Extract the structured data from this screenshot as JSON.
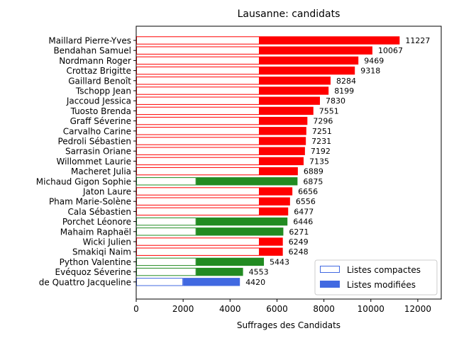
{
  "chart_data": {
    "type": "bar",
    "orientation": "horizontal",
    "stacked": true,
    "title": "Lausanne: candidats",
    "xlabel": "Suffrages des Candidats",
    "ylabel": "",
    "xlim": [
      0,
      13000
    ],
    "xticks": [
      0,
      2000,
      4000,
      6000,
      8000,
      10000,
      12000
    ],
    "grid": false,
    "legend_position": "lower-right",
    "legend": [
      {
        "label": "Listes compactes",
        "style": "outline",
        "color": "#4169e1"
      },
      {
        "label": "Listes modifiées",
        "style": "filled",
        "color": "#4169e1"
      }
    ],
    "candidates": [
      {
        "name": "Maillard Pierre-Yves",
        "compactes": 5260,
        "modifiees": 5967,
        "total": 11227,
        "color": "#ff0000"
      },
      {
        "name": "Bendahan Samuel",
        "compactes": 5260,
        "modifiees": 4807,
        "total": 10067,
        "color": "#ff0000"
      },
      {
        "name": "Nordmann Roger",
        "compactes": 5260,
        "modifiees": 4209,
        "total": 9469,
        "color": "#ff0000"
      },
      {
        "name": "Crottaz Brigitte",
        "compactes": 5260,
        "modifiees": 4058,
        "total": 9318,
        "color": "#ff0000"
      },
      {
        "name": "Gaillard Benoît",
        "compactes": 5260,
        "modifiees": 3024,
        "total": 8284,
        "color": "#ff0000"
      },
      {
        "name": "Tschopp Jean",
        "compactes": 5260,
        "modifiees": 2939,
        "total": 8199,
        "color": "#ff0000"
      },
      {
        "name": "Jaccoud Jessica",
        "compactes": 5260,
        "modifiees": 2570,
        "total": 7830,
        "color": "#ff0000"
      },
      {
        "name": "Tuosto Brenda",
        "compactes": 5260,
        "modifiees": 2291,
        "total": 7551,
        "color": "#ff0000"
      },
      {
        "name": "Graff Séverine",
        "compactes": 5260,
        "modifiees": 2036,
        "total": 7296,
        "color": "#ff0000"
      },
      {
        "name": "Carvalho Carine",
        "compactes": 5260,
        "modifiees": 1991,
        "total": 7251,
        "color": "#ff0000"
      },
      {
        "name": "Pedroli Sébastien",
        "compactes": 5260,
        "modifiees": 1971,
        "total": 7231,
        "color": "#ff0000"
      },
      {
        "name": "Sarrasin Oriane",
        "compactes": 5260,
        "modifiees": 1932,
        "total": 7192,
        "color": "#ff0000"
      },
      {
        "name": "Willommet Laurie",
        "compactes": 5260,
        "modifiees": 1875,
        "total": 7135,
        "color": "#ff0000"
      },
      {
        "name": "Macheret Julia",
        "compactes": 5260,
        "modifiees": 1629,
        "total": 6889,
        "color": "#ff0000"
      },
      {
        "name": "Michaud Gigon Sophie",
        "compactes": 2560,
        "modifiees": 4315,
        "total": 6875,
        "color": "#228b22"
      },
      {
        "name": "Jaton Laure",
        "compactes": 5260,
        "modifiees": 1396,
        "total": 6656,
        "color": "#ff0000"
      },
      {
        "name": "Pham Marie-Solène",
        "compactes": 5260,
        "modifiees": 1296,
        "total": 6556,
        "color": "#ff0000"
      },
      {
        "name": "Cala Sébastien",
        "compactes": 5260,
        "modifiees": 1217,
        "total": 6477,
        "color": "#ff0000"
      },
      {
        "name": "Porchet Léonore",
        "compactes": 2560,
        "modifiees": 3886,
        "total": 6446,
        "color": "#228b22"
      },
      {
        "name": "Mahaim Raphaël",
        "compactes": 2560,
        "modifiees": 3711,
        "total": 6271,
        "color": "#228b22"
      },
      {
        "name": "Wicki Julien",
        "compactes": 5260,
        "modifiees": 989,
        "total": 6249,
        "color": "#ff0000"
      },
      {
        "name": "Smakiqi Naim",
        "compactes": 5260,
        "modifiees": 988,
        "total": 6248,
        "color": "#ff0000"
      },
      {
        "name": "Python Valentine",
        "compactes": 2560,
        "modifiees": 2883,
        "total": 5443,
        "color": "#228b22"
      },
      {
        "name": "Evéquoz Séverine",
        "compactes": 2560,
        "modifiees": 1993,
        "total": 4553,
        "color": "#228b22"
      },
      {
        "name": "de Quattro Jacqueline",
        "compactes": 2000,
        "modifiees": 2420,
        "total": 4420,
        "color": "#4169e1"
      }
    ]
  }
}
